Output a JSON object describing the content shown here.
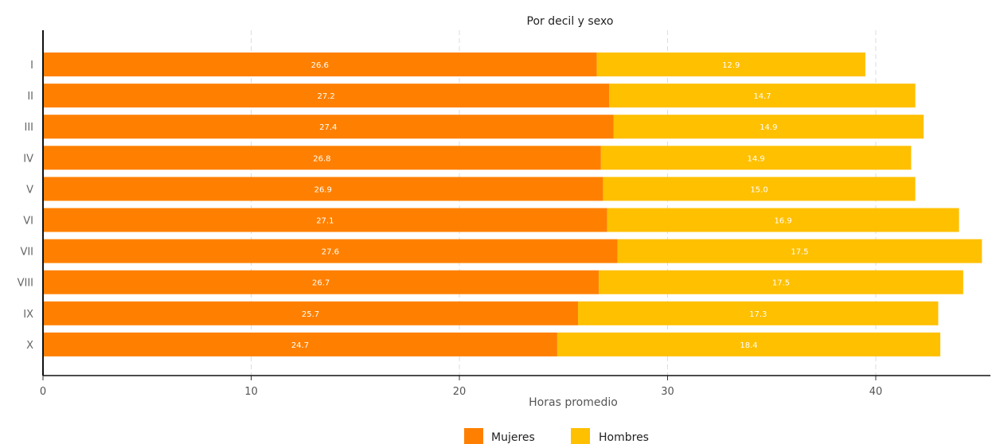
{
  "chart_data": {
    "type": "bar",
    "orientation": "horizontal",
    "stacked": true,
    "title": "Por decil y sexo",
    "xlabel": "Horas promedio",
    "ylabel": "",
    "xlim": [
      0,
      45
    ],
    "xticks": [
      0,
      10,
      20,
      30,
      40
    ],
    "grid": "vertical-dashed",
    "legend_position": "bottom-center",
    "categories": [
      "I",
      "II",
      "III",
      "IV",
      "V",
      "VI",
      "VII",
      "VIII",
      "IX",
      "X"
    ],
    "series": [
      {
        "name": "Mujeres",
        "color": "#FF8000",
        "values": [
          26.6,
          27.2,
          27.4,
          26.8,
          26.9,
          27.1,
          27.6,
          26.7,
          25.7,
          24.7
        ],
        "labels": [
          "26.6",
          "27.2",
          "27.4",
          "26.8",
          "26.9",
          "27.1",
          "27.6",
          "26.7",
          "25.7",
          "24.7"
        ]
      },
      {
        "name": "Hombres",
        "color": "#FFC000",
        "values": [
          12.9,
          14.7,
          14.9,
          14.9,
          15.0,
          16.9,
          17.5,
          17.5,
          17.3,
          18.4
        ],
        "labels": [
          "12.9",
          "14.7",
          "14.9",
          "14.9",
          "15.0",
          "16.9",
          "17.5",
          "17.5",
          "17.3",
          "18.4"
        ]
      }
    ]
  }
}
